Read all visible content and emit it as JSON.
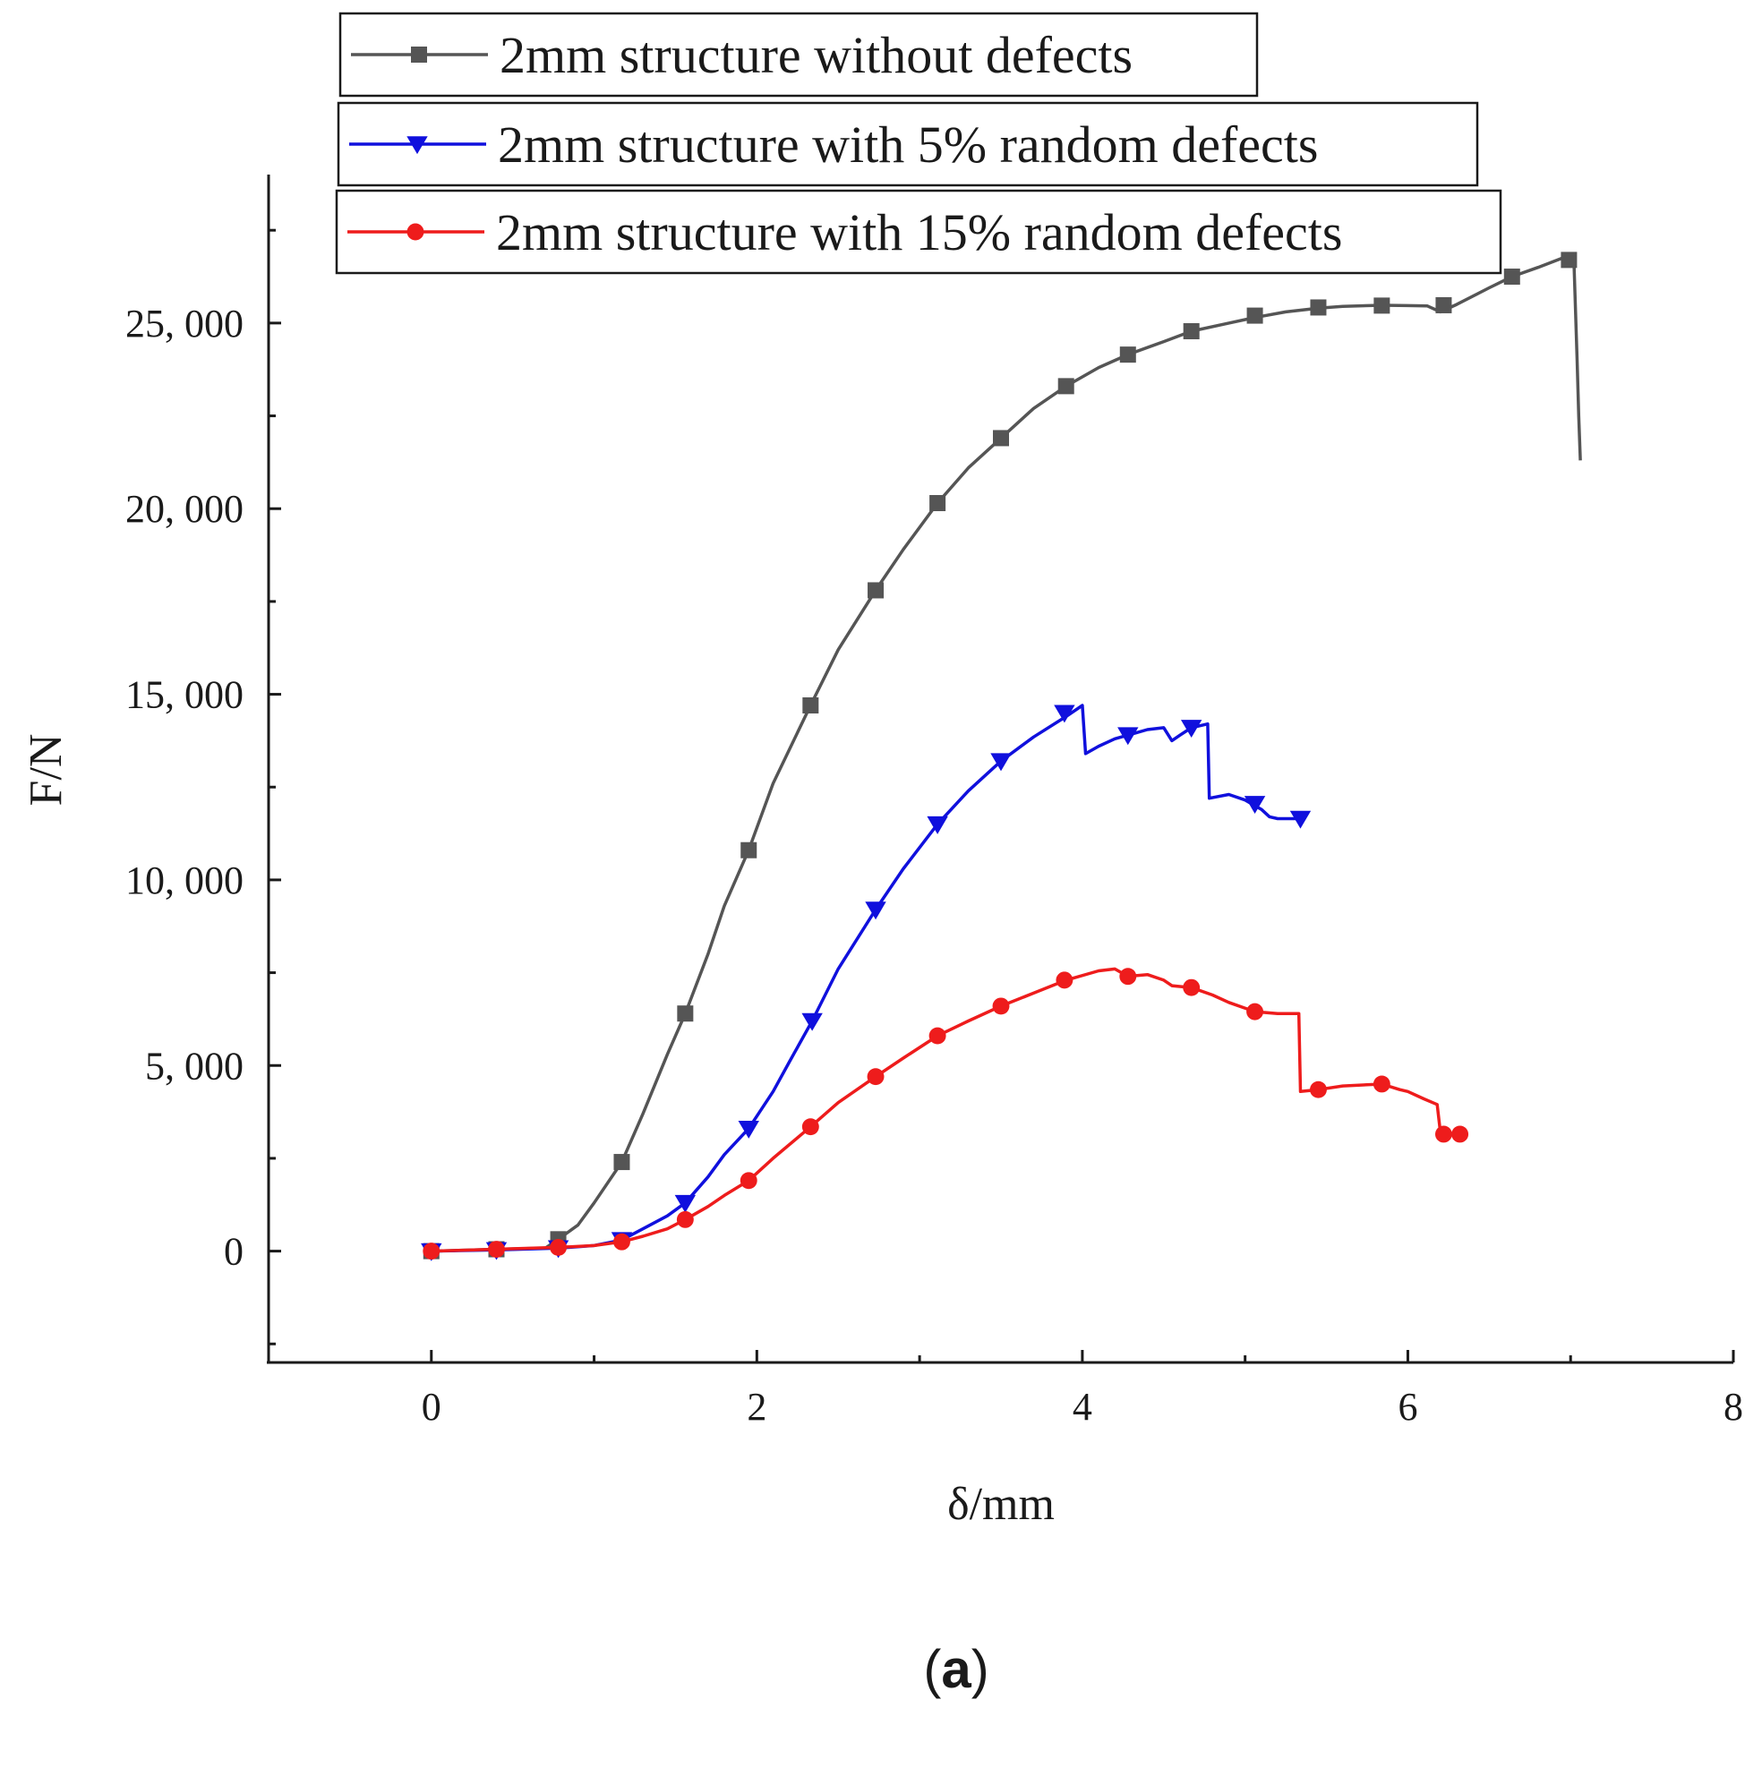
{
  "chart_data": {
    "type": "line",
    "title": "",
    "xlabel": "δ/mm",
    "ylabel": "F/N",
    "xlim": [
      -1,
      8
    ],
    "ylim": [
      -3000,
      29000
    ],
    "xticks": [
      0,
      2,
      4,
      6,
      8
    ],
    "xtick_labels": [
      "0",
      "2",
      "4",
      "6",
      "8"
    ],
    "yticks": [
      0,
      5000,
      10000,
      15000,
      20000,
      25000
    ],
    "ytick_labels": [
      "0",
      "5, 000",
      "10, 000",
      "15, 000",
      "20, 000",
      "25, 000"
    ],
    "legend_position": "top",
    "panel_label": {
      "open": "(",
      "letter": "a",
      "close": ")"
    },
    "series": [
      {
        "name": "2mm structure without defects",
        "color": "#555555",
        "marker": "square",
        "x": [
          0,
          0.4,
          0.7,
          0.78,
          0.9,
          1.0,
          1.17,
          1.3,
          1.45,
          1.56,
          1.7,
          1.8,
          1.95,
          2.1,
          2.33,
          2.5,
          2.73,
          2.9,
          3.11,
          3.3,
          3.5,
          3.7,
          3.9,
          4.1,
          4.28,
          4.5,
          4.67,
          4.9,
          5.06,
          5.25,
          5.45,
          5.6,
          5.84,
          6.0,
          6.12,
          6.2,
          6.3,
          6.5,
          6.64,
          6.8,
          6.95,
          7.02,
          7.04,
          7.05,
          7.06
        ],
        "y": [
          0,
          50,
          80,
          320,
          700,
          1300,
          2400,
          3700,
          5300,
          6400,
          8000,
          9300,
          10800,
          12600,
          14700,
          16200,
          17800,
          18900,
          20150,
          21100,
          21900,
          22700,
          23300,
          23800,
          24150,
          24500,
          24780,
          25000,
          25150,
          25300,
          25400,
          25450,
          25480,
          25470,
          25460,
          25300,
          25500,
          25950,
          26250,
          26500,
          26750,
          26700,
          24000,
          22500,
          21300
        ],
        "markers_x": [
          0,
          0.4,
          0.78,
          1.17,
          1.56,
          1.95,
          2.33,
          2.73,
          3.11,
          3.5,
          3.9,
          4.28,
          4.67,
          5.06,
          5.45,
          5.84,
          6.22,
          6.64,
          6.99
        ],
        "markers_y": [
          0,
          50,
          320,
          2400,
          6400,
          10800,
          14700,
          17800,
          20150,
          21900,
          23300,
          24150,
          24780,
          25200,
          25420,
          25470,
          25480,
          26250,
          26700
        ]
      },
      {
        "name": "2mm structure with 5% random defects",
        "color": "#1010dd",
        "marker": "triangle-down",
        "x": [
          0,
          0.4,
          0.78,
          1.0,
          1.17,
          1.3,
          1.45,
          1.56,
          1.7,
          1.8,
          1.95,
          2.1,
          2.2,
          2.34,
          2.5,
          2.73,
          2.9,
          3.11,
          3.3,
          3.5,
          3.7,
          3.9,
          4.0,
          4.02,
          4.1,
          4.2,
          4.28,
          4.4,
          4.5,
          4.55,
          4.6,
          4.67,
          4.77,
          4.78,
          4.9,
          5.0,
          5.06,
          5.1,
          5.15,
          5.2,
          5.3,
          5.35
        ],
        "y": [
          0,
          30,
          80,
          150,
          300,
          600,
          950,
          1300,
          2000,
          2600,
          3300,
          4300,
          5100,
          6200,
          7600,
          9200,
          10300,
          11500,
          12400,
          13200,
          13850,
          14400,
          14700,
          13400,
          13600,
          13800,
          13900,
          14050,
          14100,
          13750,
          13900,
          14100,
          14200,
          12200,
          12300,
          12150,
          12000,
          11900,
          11700,
          11650,
          11650,
          11650
        ],
        "markers_x": [
          0,
          0.4,
          0.78,
          1.17,
          1.56,
          1.95,
          2.34,
          2.73,
          3.11,
          3.5,
          3.89,
          4.28,
          4.67,
          5.06,
          5.34
        ],
        "markers_y": [
          0,
          30,
          80,
          300,
          1300,
          3300,
          6200,
          9200,
          11500,
          13200,
          14500,
          13900,
          14100,
          12050,
          11650
        ]
      },
      {
        "name": "2mm structure with 15% random defects",
        "color": "#ee1c1c",
        "marker": "circle",
        "x": [
          0,
          0.4,
          0.78,
          1.0,
          1.17,
          1.3,
          1.45,
          1.56,
          1.7,
          1.8,
          1.95,
          2.1,
          2.33,
          2.5,
          2.73,
          2.9,
          3.11,
          3.3,
          3.5,
          3.7,
          3.9,
          4.1,
          4.2,
          4.28,
          4.4,
          4.5,
          4.55,
          4.67,
          4.8,
          4.9,
          5.06,
          5.2,
          5.33,
          5.34,
          5.45,
          5.6,
          5.84,
          5.95,
          6.0,
          6.1,
          6.18,
          6.2,
          6.22,
          6.3,
          6.33
        ],
        "y": [
          0,
          50,
          100,
          150,
          250,
          400,
          600,
          850,
          1200,
          1500,
          1900,
          2500,
          3350,
          4000,
          4700,
          5200,
          5800,
          6200,
          6600,
          6950,
          7300,
          7550,
          7600,
          7400,
          7450,
          7300,
          7150,
          7100,
          6900,
          6700,
          6450,
          6400,
          6400,
          4300,
          4350,
          4450,
          4500,
          4350,
          4300,
          4100,
          3950,
          3200,
          3150,
          3150,
          3150
        ],
        "markers_x": [
          0,
          0.4,
          0.78,
          1.17,
          1.56,
          1.95,
          2.33,
          2.73,
          3.11,
          3.5,
          3.89,
          4.28,
          4.67,
          5.06,
          5.45,
          5.84,
          6.22,
          6.32
        ],
        "markers_y": [
          0,
          50,
          100,
          250,
          850,
          1900,
          3350,
          4700,
          5800,
          6600,
          7300,
          7400,
          7100,
          6450,
          4350,
          4500,
          3150,
          3150
        ]
      }
    ]
  }
}
